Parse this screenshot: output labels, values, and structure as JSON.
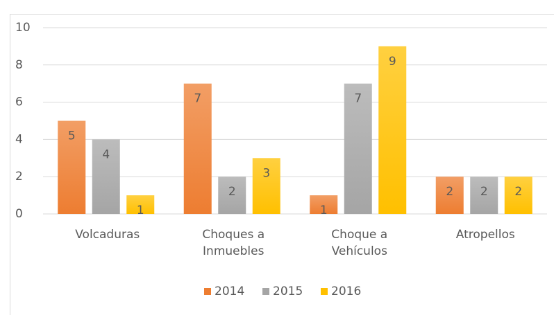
{
  "chart_data": {
    "type": "bar",
    "categories": [
      "Volcaduras",
      "Choques a Inmuebles",
      "Choque a Vehículos",
      "Atropellos"
    ],
    "series": [
      {
        "name": "2014",
        "color": "#ed7d31",
        "values": [
          5,
          7,
          1,
          2
        ]
      },
      {
        "name": "2015",
        "color": "#a5a5a5",
        "values": [
          4,
          2,
          7,
          2
        ]
      },
      {
        "name": "2016",
        "color": "#ffc000",
        "values": [
          1,
          3,
          9,
          2
        ]
      }
    ],
    "ylim": [
      0,
      10
    ],
    "yticks": [
      0,
      2,
      4,
      6,
      8,
      10
    ],
    "grid": true,
    "legend": "bottom"
  }
}
